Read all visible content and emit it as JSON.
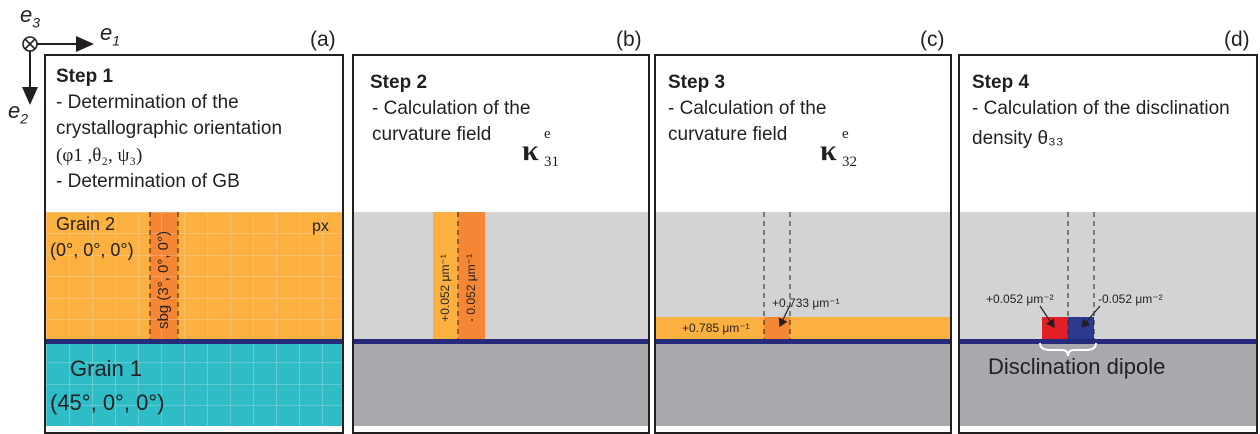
{
  "axes": {
    "e1": "e",
    "e1_sub": "1",
    "e2": "e",
    "e2_sub": "2",
    "e3": "e",
    "e3_sub": "3"
  },
  "panels": [
    {
      "label": "(a)",
      "step": "Step 1",
      "lines": [
        "- Determination of the",
        "crystallographic orientation",
        "(φ1 ,θ₂, ψ₃)",
        "- Determination of GB"
      ],
      "grain2_name": "Grain 2",
      "grain2_angles": "(0°, 0°, 0°)",
      "sbg_label": "sbg (3°, 0°, 0°)",
      "px_label": "px",
      "grain1_name": "Grain 1",
      "grain1_angles": "(45°, 0°, 0°)"
    },
    {
      "label": "(b)",
      "step": "Step 2",
      "lines": [
        "- Calculation of the",
        "curvature field"
      ],
      "kappa": "κ",
      "kappa_sup": "e",
      "kappa_sub": "31",
      "pos_label": "+0.052 μm⁻¹",
      "neg_label": "- 0.052 μm⁻¹"
    },
    {
      "label": "(c)",
      "step": "Step 3",
      "lines": [
        "- Calculation of the",
        "curvature field"
      ],
      "kappa": "κ",
      "kappa_sup": "e",
      "kappa_sub": "32",
      "band_label": "+0.785 μm⁻¹",
      "spot_label": "+0.733 μm⁻¹"
    },
    {
      "label": "(d)",
      "step": "Step 4",
      "lines": [
        "- Calculation of the disclination",
        "density θ₃₃"
      ],
      "pos_label": "+0.052 μm⁻²",
      "neg_label": "-0.052 μm⁻²",
      "dipole_label": "Disclination dipole"
    }
  ],
  "colors": {
    "orange": "#fbb040",
    "dark_orange": "#f58634",
    "teal": "#2ebcc7",
    "light_gray": "#d1d3d4",
    "dark_gray": "#a7a9ac",
    "navy": "#262a7a",
    "red": "#e31e24",
    "blue": "#2b3990"
  }
}
